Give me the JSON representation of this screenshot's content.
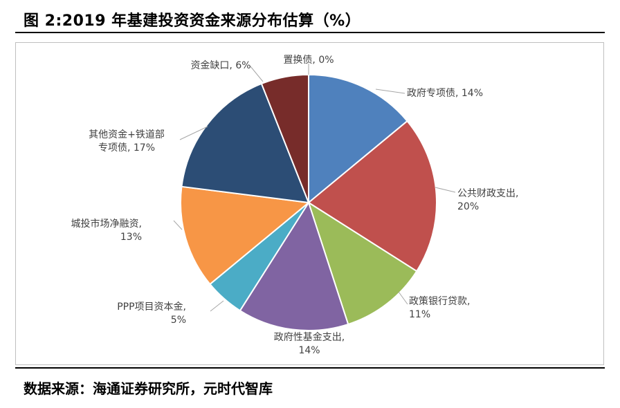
{
  "figure": {
    "title": "图 2:2019 年基建投资资金来源分布估算（%）",
    "source": "数据来源：海通证券研究所，元时代智库"
  },
  "chart_data": {
    "type": "pie",
    "start_angle_deg": 0,
    "direction": "clockwise",
    "slices": [
      {
        "name": "政府专项债",
        "value": 14,
        "label_lines": [
          "政府专项债, 14%"
        ],
        "color": "#4F81BD"
      },
      {
        "name": "公共财政支出",
        "value": 20,
        "label_lines": [
          "公共财政支出,",
          "20%"
        ],
        "color": "#C0504D"
      },
      {
        "name": "政策银行贷款",
        "value": 11,
        "label_lines": [
          "政策银行贷款,",
          "11%"
        ],
        "color": "#9BBB59"
      },
      {
        "name": "政府性基金支出",
        "value": 14,
        "label_lines": [
          "政府性基金支出,",
          "14%"
        ],
        "color": "#8064A2"
      },
      {
        "name": "PPP项目资本金",
        "value": 5,
        "label_lines": [
          "PPP项目资本金,",
          "5%"
        ],
        "color": "#4BACC6"
      },
      {
        "name": "城投市场净融资",
        "value": 13,
        "label_lines": [
          "城投市场净融资,",
          "13%"
        ],
        "color": "#F79646"
      },
      {
        "name": "其他资金+铁道部专项债",
        "value": 17,
        "label_lines": [
          "其他资金+铁道部",
          "专项债, 17%"
        ],
        "color": "#2C4D75"
      },
      {
        "name": "资金缺口",
        "value": 6,
        "label_lines": [
          "资金缺口, 6%"
        ],
        "color": "#772C2A"
      },
      {
        "name": "置换债",
        "value": 0,
        "label_lines": [
          "置换债, 0%"
        ],
        "color": "#5F7530"
      }
    ]
  }
}
